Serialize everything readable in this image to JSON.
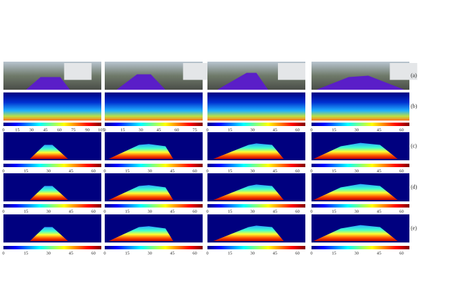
{
  "row_labels": [
    "(a)",
    "(b)",
    "(c)",
    "(d)",
    "(e)"
  ],
  "colorbars": [
    [
      [
        0,
        15,
        30,
        45,
        60,
        75,
        90,
        105
      ],
      [
        0,
        15,
        30,
        45,
        60,
        75
      ],
      [
        0,
        15,
        30,
        45,
        60
      ],
      [
        0,
        15,
        30,
        45,
        60
      ]
    ],
    [
      [
        0,
        15,
        30,
        45,
        60
      ],
      [
        0,
        15,
        30,
        45,
        60
      ],
      [
        0,
        15,
        30,
        45,
        60
      ],
      [
        0,
        15,
        30,
        45,
        60
      ]
    ],
    [
      [
        0,
        15,
        30,
        45,
        60
      ],
      [
        0,
        15,
        30,
        45,
        60
      ],
      [
        0,
        15,
        30,
        45,
        60
      ],
      [
        0,
        15,
        30,
        45,
        60
      ]
    ],
    [
      [
        0,
        15,
        30,
        45,
        60
      ],
      [
        0,
        15,
        30,
        45,
        60
      ],
      [
        0,
        15,
        30,
        45,
        60
      ],
      [
        0,
        15,
        30,
        45,
        60
      ]
    ]
  ]
}
